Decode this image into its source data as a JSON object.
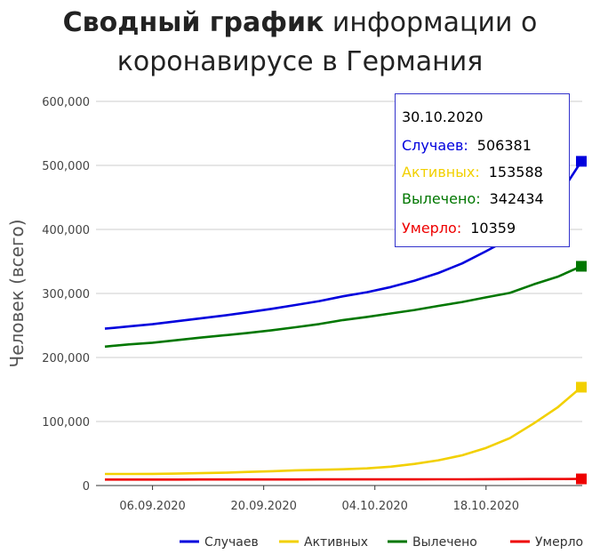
{
  "title_bold": "Сводный график",
  "title_rest_line1": " информации о",
  "title_line2": "коронавирусе в Германия",
  "chart_data": {
    "type": "line",
    "ylabel": "Человек (всего)",
    "xlabel": "",
    "ylim": [
      0,
      600000
    ],
    "yticks": [
      0,
      100000,
      200000,
      300000,
      400000,
      500000,
      600000
    ],
    "ytick_labels": [
      "0",
      "100,000",
      "200,000",
      "300,000",
      "400,000",
      "500,000",
      "600,000"
    ],
    "xlim": [
      "2020-08-31",
      "2020-10-30"
    ],
    "xticks": [
      "2020-09-06",
      "2020-09-20",
      "2020-10-04",
      "2020-10-18"
    ],
    "xtick_labels": [
      "06.09.2020",
      "20.09.2020",
      "04.10.2020",
      "18.10.2020"
    ],
    "grid": true,
    "legend_position": "bottom-right",
    "x": [
      "2020-08-31",
      "2020-09-03",
      "2020-09-06",
      "2020-09-09",
      "2020-09-12",
      "2020-09-15",
      "2020-09-18",
      "2020-09-21",
      "2020-09-24",
      "2020-09-27",
      "2020-09-30",
      "2020-10-03",
      "2020-10-06",
      "2020-10-09",
      "2020-10-12",
      "2020-10-15",
      "2020-10-18",
      "2020-10-21",
      "2020-10-24",
      "2020-10-27",
      "2020-10-30"
    ],
    "series": [
      {
        "name": "Случаев",
        "color": "#0000dd",
        "values": [
          245000,
          248500,
          252000,
          256500,
          261000,
          265500,
          270500,
          276000,
          282000,
          288000,
          295500,
          302000,
          310000,
          320000,
          332000,
          347000,
          366000,
          386000,
          412000,
          449000,
          506381
        ]
      },
      {
        "name": "Активных",
        "color": "#f2d000",
        "values": [
          18000,
          18100,
          18200,
          18600,
          19300,
          20000,
          21200,
          22400,
          23700,
          24600,
          25400,
          26800,
          29500,
          33800,
          39500,
          47200,
          58700,
          74000,
          97000,
          122000,
          153588
        ]
      },
      {
        "name": "Вылечено",
        "color": "#007700",
        "values": [
          217000,
          220400,
          223000,
          227000,
          231000,
          234600,
          238400,
          242500,
          247200,
          252200,
          258500,
          263300,
          268800,
          274200,
          280500,
          286700,
          293900,
          300800,
          314100,
          326000,
          342434
        ]
      },
      {
        "name": "Умерло",
        "color": "#ee0000",
        "values": [
          9300,
          9320,
          9340,
          9360,
          9380,
          9400,
          9430,
          9460,
          9490,
          9520,
          9550,
          9580,
          9610,
          9650,
          9700,
          9760,
          9850,
          9950,
          10070,
          10200,
          10359
        ]
      }
    ]
  },
  "tooltip": {
    "date": "30.10.2020",
    "rows": [
      {
        "label": "Случаев:",
        "value": "506381",
        "color": "#0000dd"
      },
      {
        "label": "Активных:",
        "value": "153588",
        "color": "#f2d000"
      },
      {
        "label": "Вылечено:",
        "value": "342434",
        "color": "#007700"
      },
      {
        "label": "Умерло:",
        "value": "10359",
        "color": "#ee0000"
      }
    ]
  }
}
